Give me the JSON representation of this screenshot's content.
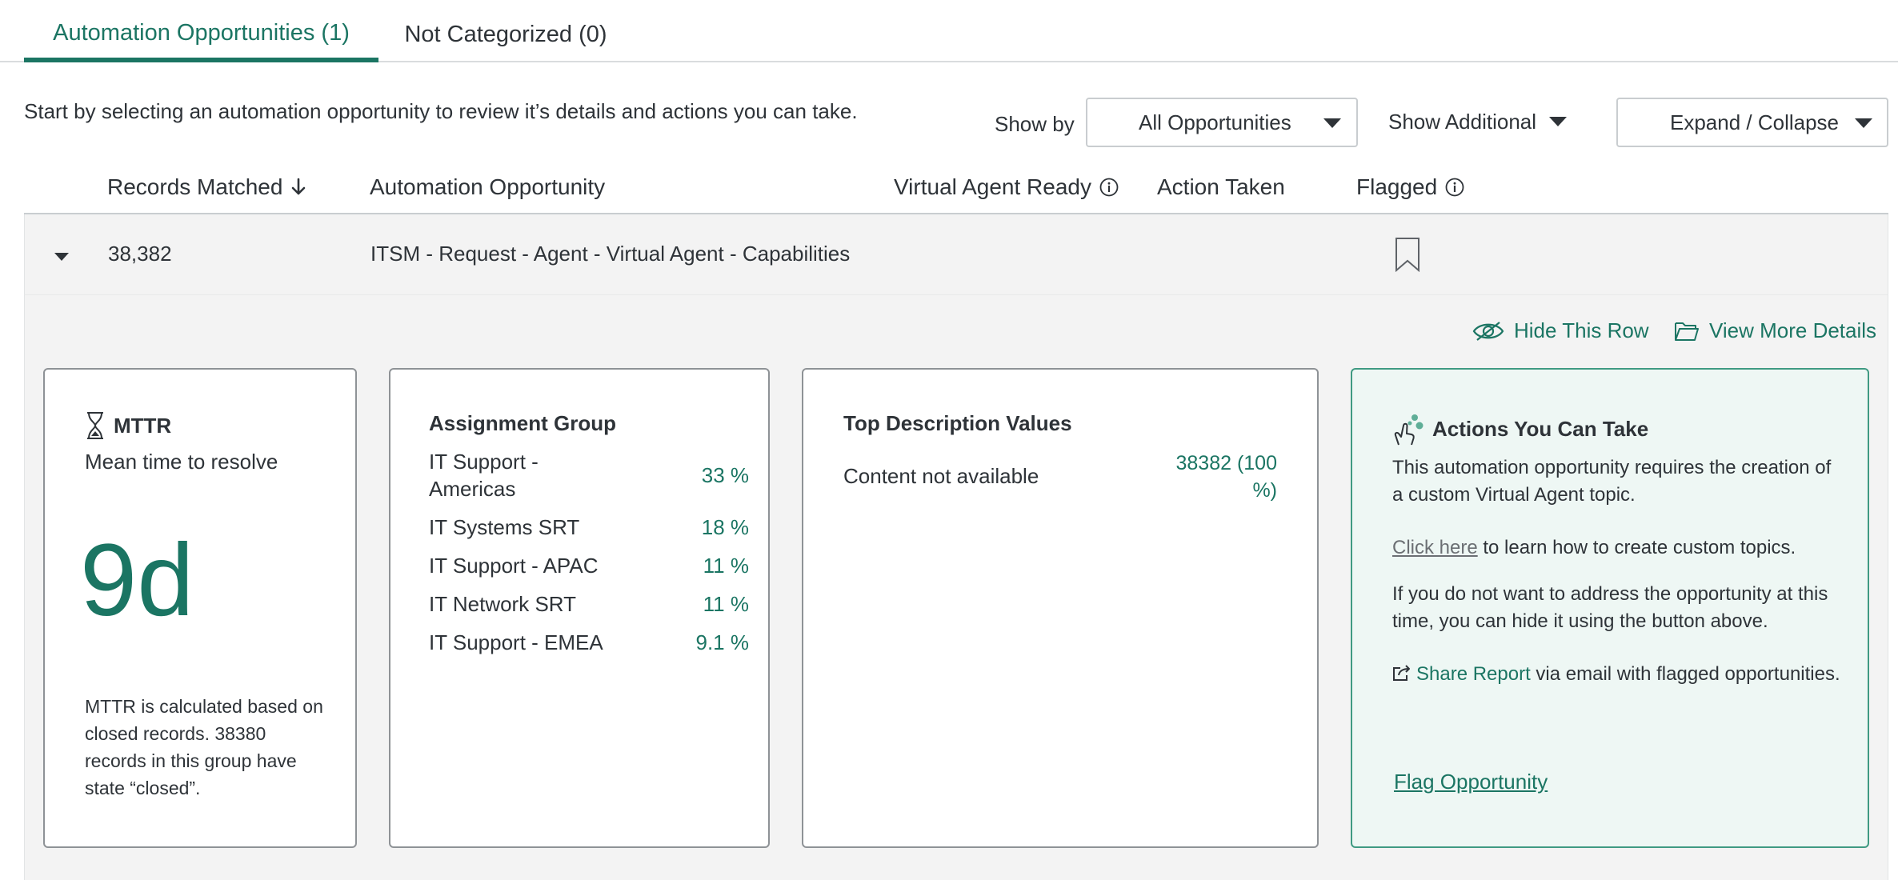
{
  "tabs": [
    {
      "label": "Automation Opportunities (1)",
      "active": true
    },
    {
      "label": "Not Categorized (0)",
      "active": false
    }
  ],
  "intro_text": "Start by selecting an automation opportunity to review it’s details and actions you can take.",
  "controls": {
    "show_by_label": "Show by",
    "show_by_value": "All Opportunities",
    "show_additional_label": "Show Additional",
    "expand_collapse_label": "Expand / Collapse"
  },
  "table": {
    "columns": {
      "records_matched": "Records Matched",
      "automation_opportunity": "Automation Opportunity",
      "virtual_agent_ready": "Virtual Agent Ready",
      "action_taken": "Action Taken",
      "flagged": "Flagged"
    },
    "rows": [
      {
        "records_matched": "38,382",
        "automation_opportunity": "ITSM - Request - Agent - Virtual Agent - Capabilities",
        "virtual_agent_ready": "",
        "action_taken": "",
        "flagged": false
      }
    ]
  },
  "detail": {
    "hide_row_label": "Hide This Row",
    "view_more_label": "View More Details",
    "mttr": {
      "title": "MTTR",
      "subtitle": "Mean time to resolve",
      "value": "9d",
      "note": "MTTR is calculated based on closed records. 38380 records in this group have state “closed”."
    },
    "assignment_group": {
      "title": "Assignment Group",
      "items": [
        {
          "name": "IT Support - Americas",
          "pct": "33 %"
        },
        {
          "name": "IT Systems SRT",
          "pct": "18 %"
        },
        {
          "name": "IT Support - APAC",
          "pct": "11 %"
        },
        {
          "name": "IT Network SRT",
          "pct": "11 %"
        },
        {
          "name": "IT Support - EMEA",
          "pct": "9.1 %"
        }
      ]
    },
    "top_description": {
      "title": "Top Description Values",
      "label": "Content not available",
      "value": "38382 (100 %)"
    },
    "actions": {
      "title": "Actions You Can Take",
      "intro": "This automation opportunity requires the creation of a custom Virtual Agent topic.",
      "click_here": "Click here",
      "click_here_suffix": " to learn how to create custom topics.",
      "hide_note": "If you do not want to address the opportunity at this time, you can hide it using the button above.",
      "share_report": "Share Report",
      "share_suffix": " via email with flagged opportunities.",
      "flag_label": "Flag Opportunity"
    }
  },
  "colors": {
    "accent": "#1b7563",
    "action_card_bg": "#eef7f4",
    "row_bg": "#f3f3f3"
  }
}
